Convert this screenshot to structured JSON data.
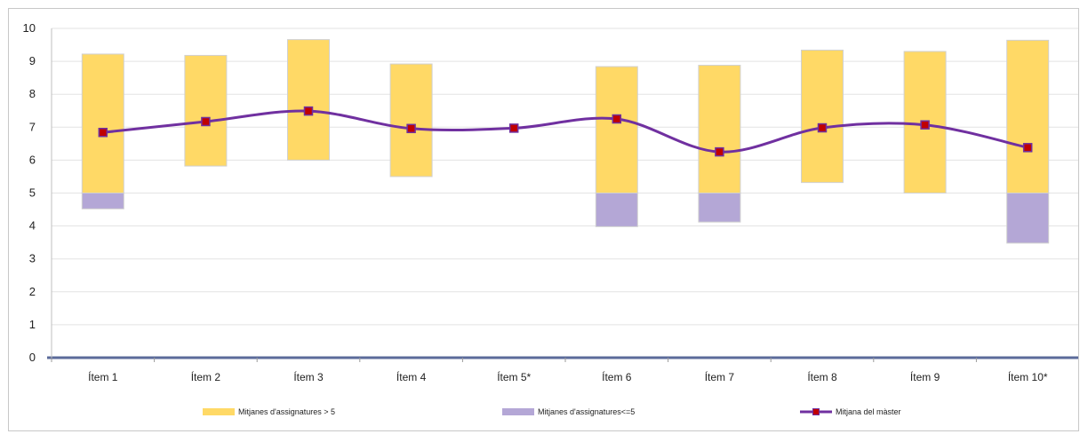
{
  "chart_data": {
    "type": "bar",
    "categories": [
      "Ítem 1",
      "Ítem 2",
      "Ítem 3",
      "Ítem 4",
      "Ítem 5*",
      "Ítem 6",
      "Ítem 7",
      "Ítem 8",
      "Ítem 9",
      "Ítem 10*"
    ],
    "ylim": [
      0,
      10
    ],
    "yticks": [
      "0",
      "1",
      "2",
      "3",
      "4",
      "5",
      "6",
      "7",
      "8",
      "9",
      "10"
    ],
    "grid": true,
    "legend_position": "bottom",
    "series": [
      {
        "name": "Mitjanes d'assignatures > 5",
        "kind": "floating-bar",
        "color": "#FFD966",
        "low": [
          5.0,
          5.82,
          6.0,
          5.5,
          null,
          5.0,
          5.0,
          5.32,
          5.0,
          5.0
        ],
        "high": [
          9.22,
          9.18,
          9.66,
          8.92,
          null,
          8.84,
          8.88,
          9.34,
          9.3,
          9.64
        ]
      },
      {
        "name": "Mitjanes d'assignatures<=5",
        "kind": "floating-bar",
        "color": "#B4A7D6",
        "low": [
          4.52,
          null,
          null,
          null,
          null,
          3.98,
          4.12,
          null,
          null,
          3.48
        ],
        "high": [
          5.0,
          null,
          null,
          null,
          null,
          5.0,
          5.0,
          null,
          null,
          5.0
        ]
      },
      {
        "name": "Mitjana del màster",
        "kind": "line",
        "color": "#7030A0",
        "marker_color": "#C00000",
        "values": [
          6.84,
          7.17,
          7.49,
          6.96,
          6.97,
          7.25,
          6.25,
          6.98,
          7.07,
          6.38
        ]
      }
    ]
  }
}
